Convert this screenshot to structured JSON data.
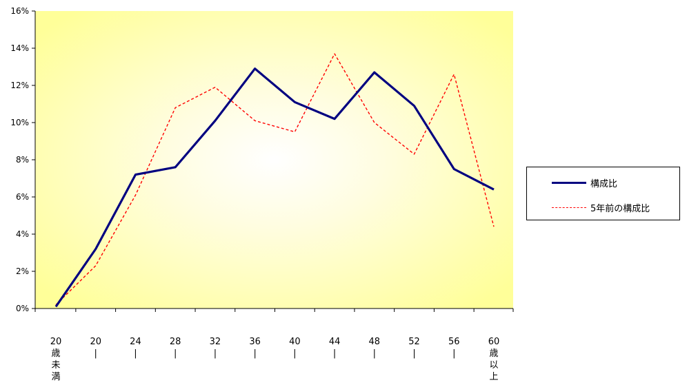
{
  "chart_data": {
    "type": "line",
    "categories": [
      [
        "20",
        "歳",
        "未",
        "満"
      ],
      [
        "20",
        "|"
      ],
      [
        "24",
        "|"
      ],
      [
        "28",
        "|"
      ],
      [
        "32",
        "|"
      ],
      [
        "36",
        "|"
      ],
      [
        "40",
        "|"
      ],
      [
        "44",
        "|"
      ],
      [
        "48",
        "|"
      ],
      [
        "52",
        "|"
      ],
      [
        "56",
        "|"
      ],
      [
        "60",
        "歳",
        "以",
        "上"
      ]
    ],
    "series": [
      {
        "name": "構成比",
        "color": "#000080",
        "style": "solid",
        "values": [
          0.1,
          3.2,
          7.2,
          7.6,
          10.1,
          12.9,
          11.1,
          10.2,
          12.7,
          10.9,
          7.5,
          6.4
        ]
      },
      {
        "name": "5年前の構成比",
        "color": "#ff0000",
        "style": "dashed",
        "values": [
          0.2,
          2.3,
          6.1,
          10.8,
          11.9,
          10.1,
          9.5,
          13.7,
          10.0,
          8.3,
          12.6,
          4.4
        ]
      }
    ],
    "y_ticks": [
      "0%",
      "2%",
      "4%",
      "6%",
      "8%",
      "10%",
      "12%",
      "14%",
      "16%"
    ],
    "ylim": [
      0,
      16
    ],
    "y_unit": "%",
    "grid": false,
    "legend_position": "right",
    "plot_background": "radial gradient, white center fading to yellow",
    "colors": {
      "background_center": "#ffffff",
      "background_edge": "#ffff99"
    }
  }
}
